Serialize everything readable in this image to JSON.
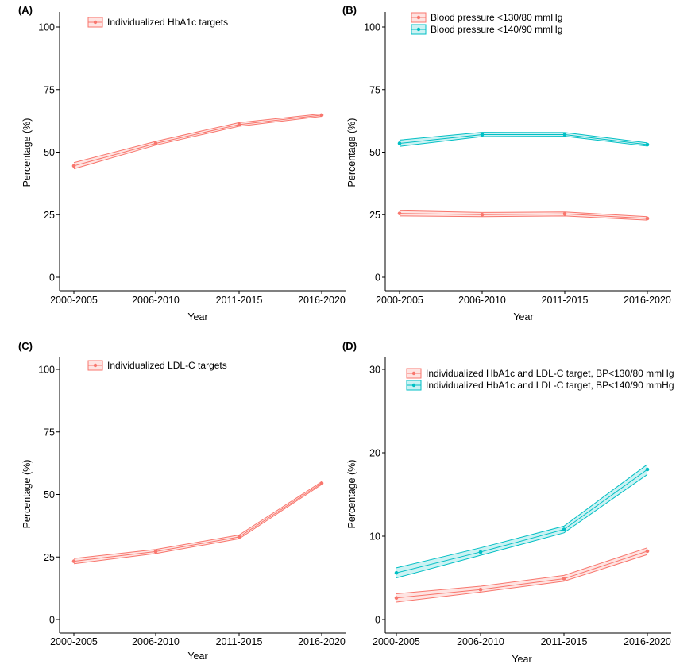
{
  "figure": {
    "colors": {
      "red": "#F8766D",
      "teal": "#00BFC4",
      "red_fill": "#F8766D",
      "teal_fill": "#00BFC4"
    }
  },
  "chart_data": [
    {
      "panel": "(A)",
      "type": "line",
      "categories": [
        "2000-2005",
        "2006-2010",
        "2011-2015",
        "2016-2020"
      ],
      "xlabel": "Year",
      "ylabel": "Percentage (%)",
      "ylim": [
        0,
        100
      ],
      "yticks": [
        0,
        25,
        50,
        75,
        100
      ],
      "legend_position": "top-left",
      "series": [
        {
          "name": "Individualized HbA1c targets",
          "color": "#F8766D",
          "values": [
            44.5,
            53.5,
            61,
            64.8
          ],
          "lower": [
            43.3,
            52.8,
            60.3,
            64.3
          ],
          "upper": [
            45.8,
            54.3,
            61.8,
            65.3
          ]
        }
      ]
    },
    {
      "panel": "(B)",
      "type": "line",
      "categories": [
        "2000-2005",
        "2006-2010",
        "2011-2015",
        "2016-2020"
      ],
      "xlabel": "Year",
      "ylabel": "Percentage (%)",
      "ylim": [
        0,
        100
      ],
      "yticks": [
        0,
        25,
        50,
        75,
        100
      ],
      "legend_position": "top-left",
      "series": [
        {
          "name": "Blood pressure <130/80 mmHg",
          "color": "#F8766D",
          "values": [
            25.5,
            25,
            25.3,
            23.5
          ],
          "lower": [
            24.5,
            24.2,
            24.5,
            22.8
          ],
          "upper": [
            26.6,
            25.9,
            26.1,
            24.2
          ]
        },
        {
          "name": "Blood pressure <140/90 mmHg",
          "color": "#00BFC4",
          "values": [
            53.5,
            57,
            57,
            53
          ],
          "lower": [
            52.3,
            56.2,
            56.3,
            52.4
          ],
          "upper": [
            54.8,
            57.9,
            57.8,
            53.7
          ]
        }
      ]
    },
    {
      "panel": "(C)",
      "type": "line",
      "categories": [
        "2000-2005",
        "2006-2010",
        "2011-2015",
        "2016-2020"
      ],
      "xlabel": "Year",
      "ylabel": "Percentage (%)",
      "ylim": [
        0,
        100
      ],
      "yticks": [
        0,
        25,
        50,
        75,
        100
      ],
      "legend_position": "top-left",
      "series": [
        {
          "name": "Individualized LDL-C targets",
          "color": "#F8766D",
          "values": [
            23.3,
            27.2,
            33,
            54.5
          ],
          "lower": [
            22.3,
            26.4,
            32.3,
            54
          ],
          "upper": [
            24.4,
            28.0,
            33.8,
            55.1
          ]
        }
      ]
    },
    {
      "panel": "(D)",
      "type": "line",
      "categories": [
        "2000-2005",
        "2006-2010",
        "2011-2015",
        "2016-2020"
      ],
      "xlabel": "Year",
      "ylabel": "Percentage (%)",
      "ylim": [
        0,
        30
      ],
      "yticks": [
        0,
        10,
        20,
        30
      ],
      "legend_position": "top-left",
      "series": [
        {
          "name": "Individualized HbA1c and LDL-C target, BP<130/80 mmHg",
          "color": "#F8766D",
          "values": [
            2.6,
            3.6,
            4.9,
            8.2
          ],
          "lower": [
            2.1,
            3.3,
            4.6,
            7.8
          ],
          "upper": [
            3.1,
            4.0,
            5.3,
            8.6
          ]
        },
        {
          "name": "Individualized HbA1c and LDL-C target, BP<140/90 mmHg",
          "color": "#00BFC4",
          "values": [
            5.6,
            8.1,
            10.8,
            18
          ],
          "lower": [
            5.0,
            7.7,
            10.4,
            17.4
          ],
          "upper": [
            6.2,
            8.6,
            11.2,
            18.6
          ]
        }
      ]
    }
  ]
}
